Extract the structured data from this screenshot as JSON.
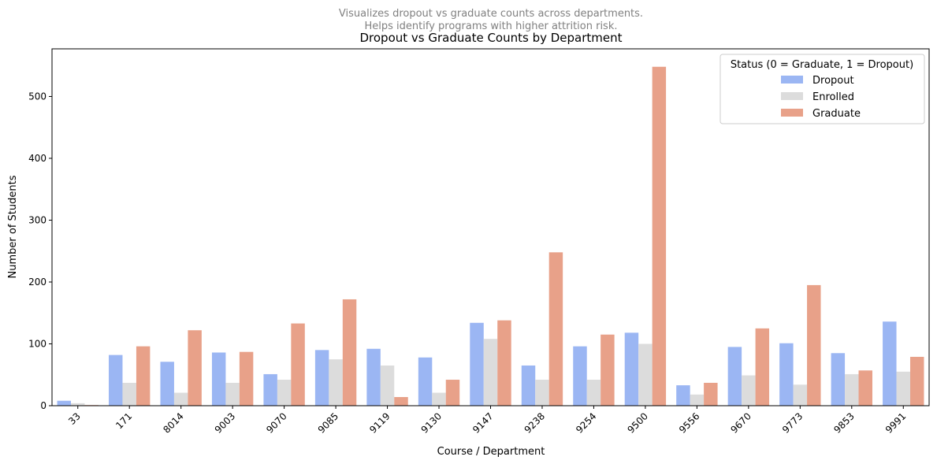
{
  "chart_data": {
    "type": "bar",
    "subtitle_lines": [
      "Visualizes dropout vs graduate counts across departments.",
      "Helps identify programs with higher attrition risk."
    ],
    "title": "Dropout vs Graduate Counts by Department",
    "xlabel": "Course / Department",
    "ylabel": "Number of Students",
    "ylim": [
      0,
      577
    ],
    "yticks": [
      0,
      100,
      200,
      300,
      400,
      500
    ],
    "grid": false,
    "legend": {
      "title": "Status (0 = Graduate, 1 = Dropout)",
      "placement": "top-right"
    },
    "categories": [
      "33",
      "171",
      "8014",
      "9003",
      "9070",
      "9085",
      "9119",
      "9130",
      "9147",
      "9238",
      "9254",
      "9500",
      "9556",
      "9670",
      "9773",
      "9853",
      "9991"
    ],
    "series": [
      {
        "name": "Dropout",
        "color": "#9bb6f3",
        "values": [
          8,
          82,
          71,
          86,
          51,
          90,
          92,
          78,
          134,
          65,
          96,
          118,
          33,
          95,
          101,
          85,
          136
        ]
      },
      {
        "name": "Enrolled",
        "color": "#dcdcdc",
        "values": [
          4,
          37,
          21,
          37,
          42,
          75,
          65,
          21,
          108,
          42,
          42,
          100,
          18,
          49,
          34,
          51,
          55
        ]
      },
      {
        "name": "Graduate",
        "color": "#e8a189",
        "values": [
          1,
          96,
          122,
          87,
          133,
          172,
          14,
          42,
          138,
          248,
          115,
          548,
          37,
          125,
          195,
          57,
          79
        ]
      }
    ]
  }
}
